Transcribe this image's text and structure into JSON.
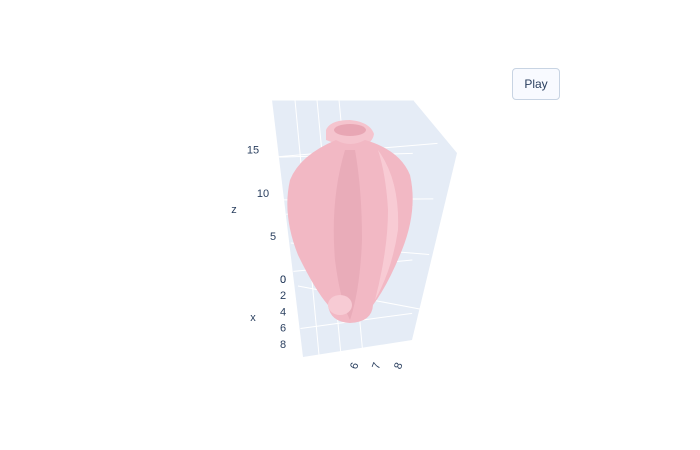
{
  "chart_data": {
    "type": "surface3d",
    "button": "Play",
    "xaxis_title": "x",
    "zaxis_title": "z",
    "xlim": [
      0,
      9
    ],
    "xticks": [
      0,
      2,
      4,
      6,
      8
    ],
    "ylim": [
      5.5,
      8.5
    ],
    "yticks": [
      6,
      7,
      8
    ],
    "zlim": [
      0,
      18
    ],
    "zticks": [
      0,
      5,
      10,
      15
    ],
    "color": "#f2b8c4",
    "pane_color": "#e5ecf6",
    "grid": true
  }
}
